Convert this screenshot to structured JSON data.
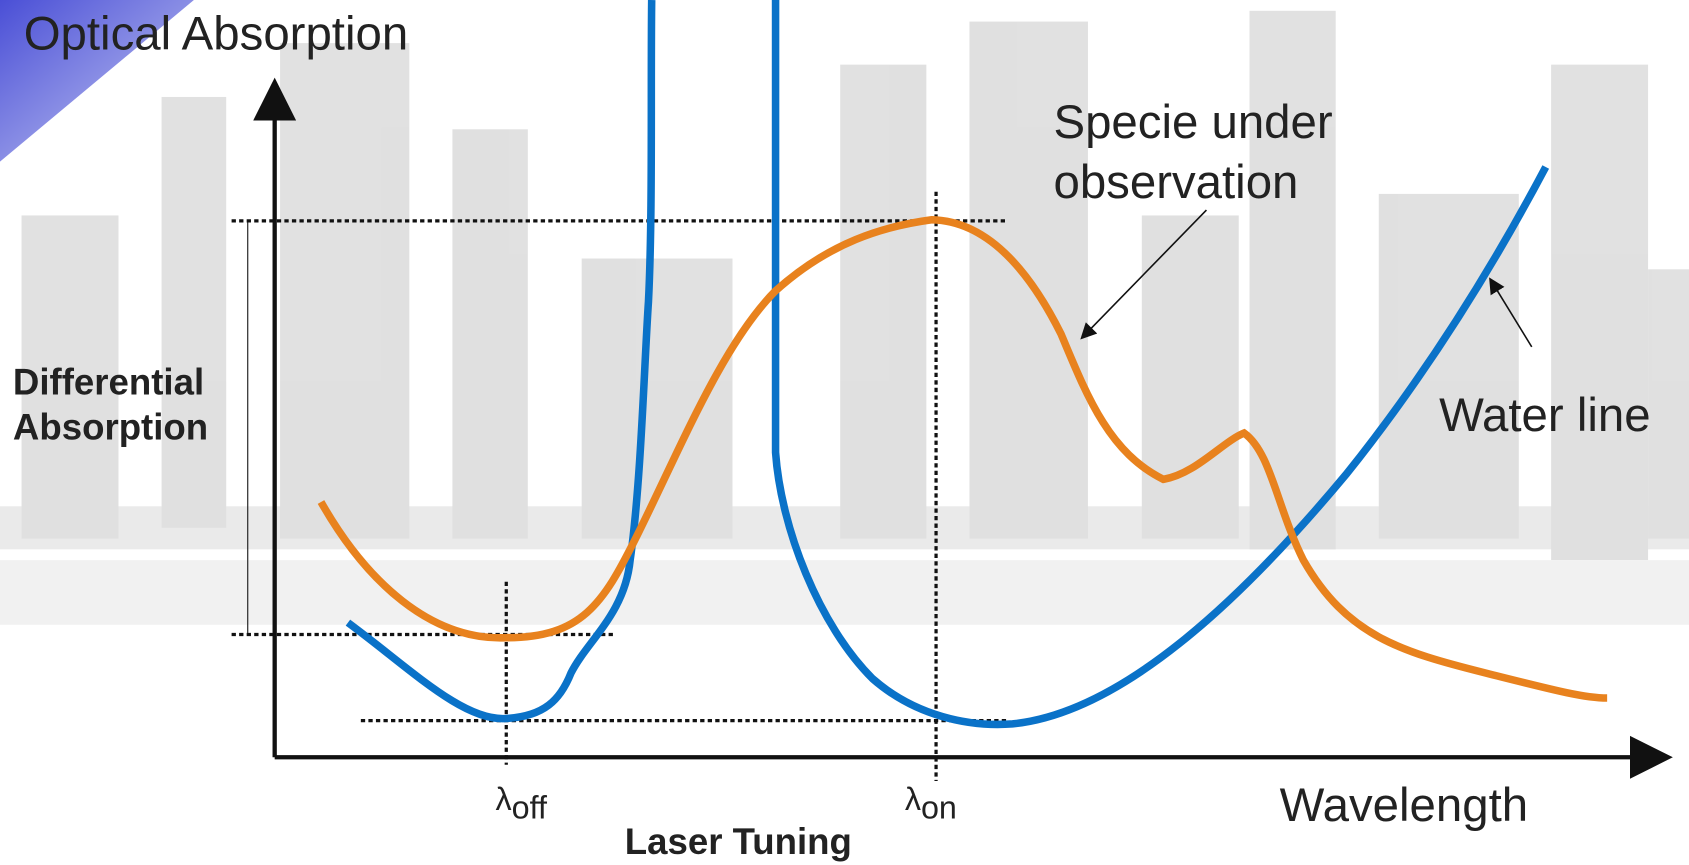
{
  "title": "Optical Absorption",
  "x_axis_label": "Wavelength",
  "differential_label": [
    "Differential",
    "Absorption"
  ],
  "specie_label": [
    "Specie under",
    "observation"
  ],
  "water_label": "Water line",
  "lambda_off": {
    "symbol": "λ",
    "subscript": "off"
  },
  "lambda_on": {
    "symbol": "λ",
    "subscript": "on"
  },
  "tuning_label": "Laser Tuning"
}
